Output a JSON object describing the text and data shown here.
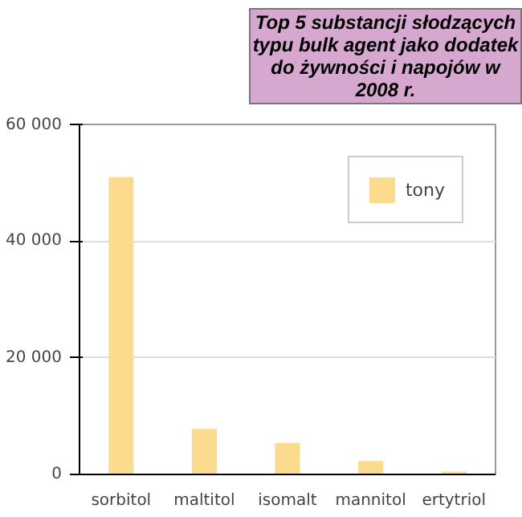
{
  "chart_data": {
    "type": "bar",
    "title": "Top 5 substancji słodzących typu bulk agent jako dodatek do żywności i napojów w 2008 r.",
    "categories": [
      "sorbitol",
      "maltitol",
      "isomalt",
      "mannitol",
      "ertytriol"
    ],
    "series": [
      {
        "name": "tony",
        "color": "#fbdc8e",
        "values": [
          51000,
          7800,
          5400,
          2300,
          500
        ]
      }
    ],
    "ylim": [
      0,
      60000
    ],
    "yticks": [
      {
        "value": 0,
        "label": "0"
      },
      {
        "value": 20000,
        "label": "20 000"
      },
      {
        "value": 40000,
        "label": "40 000"
      },
      {
        "value": 60000,
        "label": "60 000"
      }
    ],
    "grid": "y",
    "legend": "top right"
  }
}
